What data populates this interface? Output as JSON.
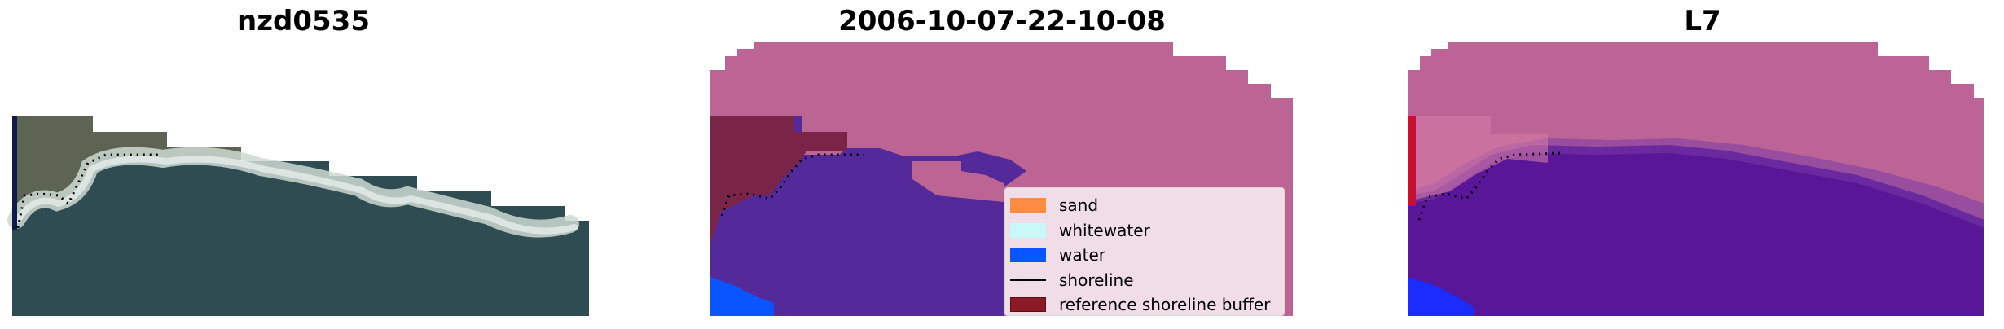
{
  "panels": {
    "left_title": "nzd0535",
    "middle_title": "2006-10-07-22-10-08",
    "right_title": "L7"
  },
  "legend": {
    "items": [
      {
        "label": "sand",
        "color": "#ff8c42",
        "kind": "patch"
      },
      {
        "label": "whitewater",
        "color": "#c8f8f8",
        "kind": "patch"
      },
      {
        "label": "water",
        "color": "#0a55ff",
        "kind": "patch"
      },
      {
        "label": "shoreline",
        "color": "#000000",
        "kind": "line"
      },
      {
        "label": "reference shoreline buffer",
        "color": "#8b1a24",
        "kind": "patch"
      }
    ]
  },
  "colors": {
    "image_ocean": "#2e4d52",
    "image_land": "#5f6656",
    "image_whitewater": "#c6d4cc",
    "mask_pink": "#bc6494",
    "mask_purple": "#54299a",
    "mask_buffer": "#7a2448",
    "index_pink": "#bd6496",
    "index_purple": "#5a1698",
    "index_red": "#c8102e",
    "index_blue": "#1a2cff"
  }
}
